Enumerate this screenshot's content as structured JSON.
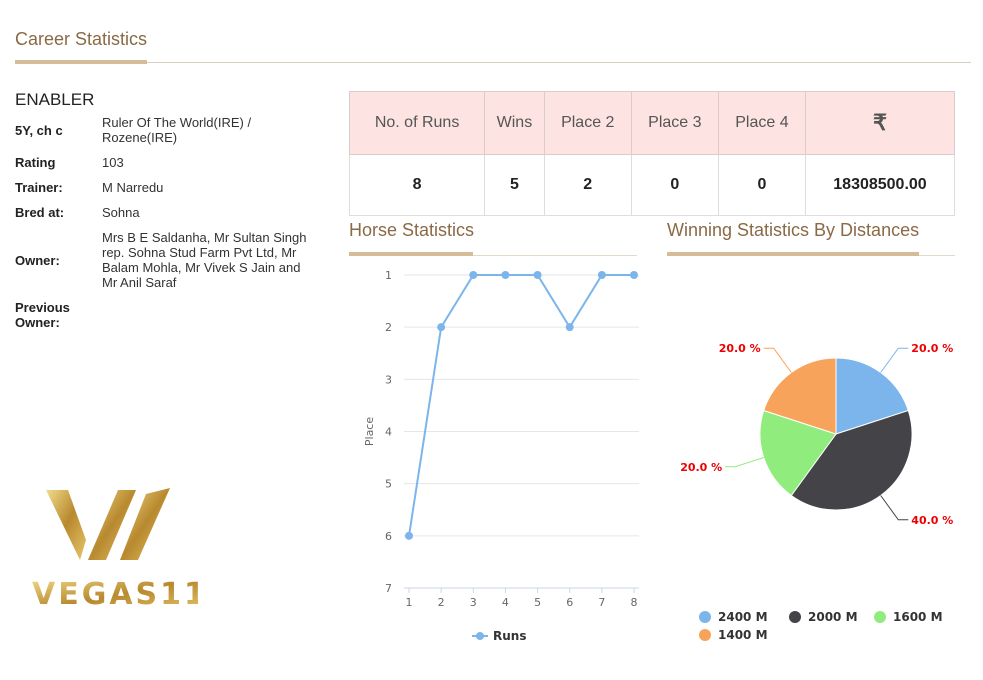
{
  "header": {
    "title": "Career Statistics"
  },
  "horse": {
    "name": "ENABLER",
    "details": [
      {
        "label": "5Y, ch c",
        "value": "Ruler Of The World(IRE) / Rozene(IRE)"
      },
      {
        "label": "Rating",
        "value": "103"
      },
      {
        "label": "Trainer:",
        "value": "M Narredu"
      },
      {
        "label": "Bred at:",
        "value": "Sohna"
      },
      {
        "label": "Owner:",
        "value": "Mrs B E Saldanha, Mr Sultan Singh rep. Sohna Stud Farm Pvt Ltd, Mr Balam Mohla, Mr Vivek S Jain and Mr Anil Saraf"
      },
      {
        "label": "Previous Owner:",
        "value": ""
      }
    ]
  },
  "stats_table": {
    "headers": [
      "No. of Runs",
      "Wins",
      "Place 2",
      "Place 3",
      "Place 4",
      "₹"
    ],
    "values": [
      "8",
      "5",
      "2",
      "0",
      "0",
      "18308500.00"
    ]
  },
  "logo": {
    "text": "VEGAS11"
  },
  "sections": {
    "horse_stats": "Horse Statistics",
    "winning_stats": "Winning Statistics By Distances"
  },
  "chart_data": [
    {
      "type": "line",
      "title": "Horse Statistics",
      "ylabel": "Place",
      "xlabel": "",
      "x": [
        1,
        2,
        3,
        4,
        5,
        6,
        7,
        8
      ],
      "series": [
        {
          "name": "Runs",
          "values": [
            6,
            2,
            1,
            1,
            1,
            2,
            1,
            1
          ],
          "color": "#7cb5ec"
        }
      ],
      "ylim": [
        1,
        7
      ],
      "yreversed": true,
      "yticks": [
        1,
        2,
        3,
        4,
        5,
        6,
        7
      ],
      "legend": "bottom"
    },
    {
      "type": "pie",
      "title": "Winning Statistics By Distances",
      "slices": [
        {
          "name": "2400 M",
          "value": 20,
          "label": "20.0 %",
          "color": "#7cb5ec"
        },
        {
          "name": "2000 M",
          "value": 40,
          "label": "40.0 %",
          "color": "#434348"
        },
        {
          "name": "1600 M",
          "value": 20,
          "label": "20.0 %",
          "color": "#90ed7d"
        },
        {
          "name": "1400 M",
          "value": 20,
          "label": "20.0 %",
          "color": "#f7a35c"
        }
      ],
      "legend": "bottom"
    }
  ]
}
